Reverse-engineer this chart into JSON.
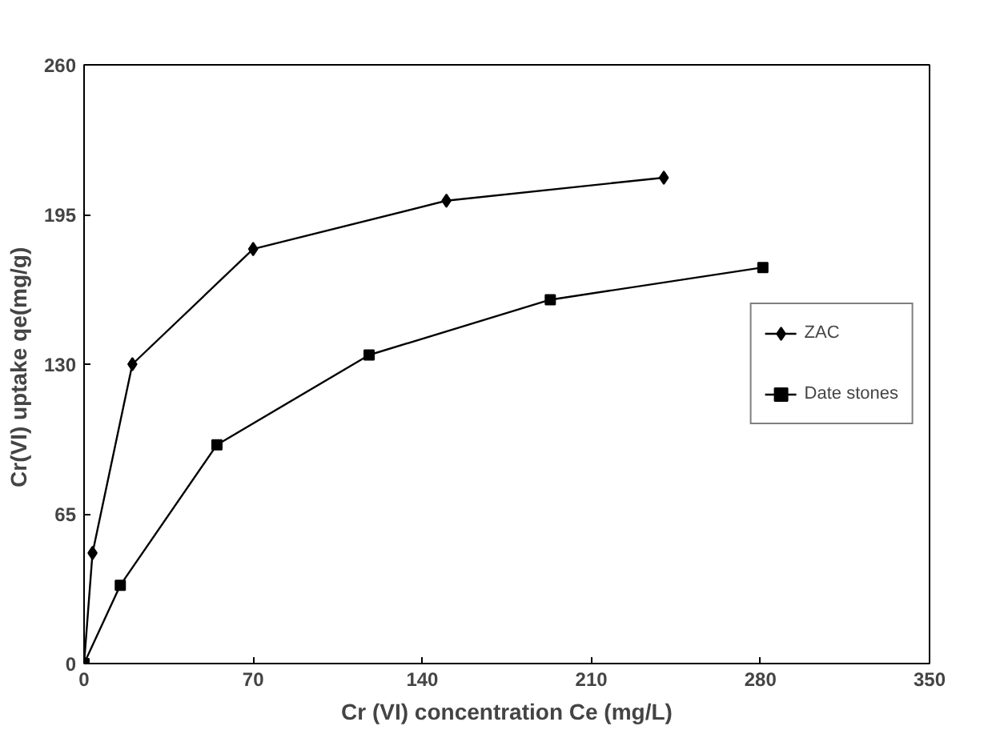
{
  "chart_data": {
    "type": "line",
    "xlabel": "Cr (VI) concentration Ce (mg/L)",
    "ylabel": "Cr(VI)  uptake qe(mg/g)",
    "series": [
      {
        "name": "ZAC",
        "color": "#000000",
        "marker": "diamond",
        "x": [
          0,
          3.5,
          20,
          70,
          150,
          240
        ],
        "values": [
          0,
          48,
          130,
          180,
          201,
          211
        ]
      },
      {
        "name": "Date stones",
        "color": "#000000",
        "marker": "square",
        "x": [
          0,
          15,
          55,
          118,
          193,
          281
        ],
        "values": [
          0,
          34,
          95,
          134,
          158,
          172
        ]
      }
    ],
    "xlim": [
      0,
      350
    ],
    "xticks": [
      0,
      70,
      140,
      210,
      280,
      350
    ],
    "ylim": [
      0,
      260
    ],
    "yticks": [
      0,
      65,
      130,
      195,
      260
    ],
    "grid": false,
    "legend": "right",
    "line_style": "solid"
  }
}
